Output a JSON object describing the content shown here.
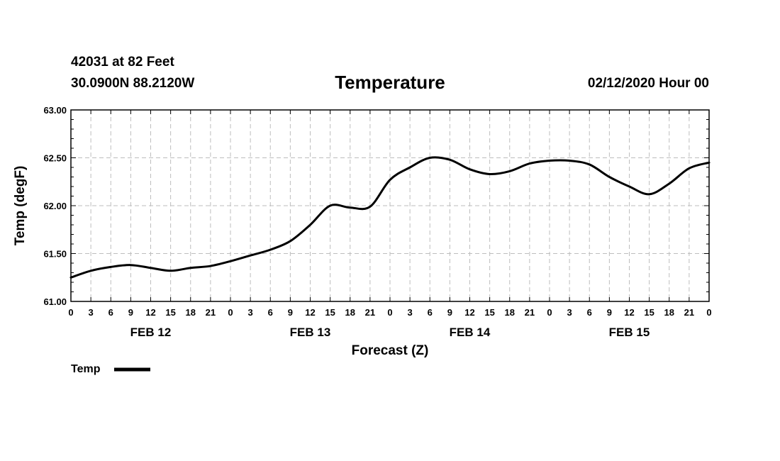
{
  "header": {
    "station": "42031 at 82 Feet",
    "coords": "30.0900N 88.2120W",
    "title": "Temperature",
    "run": "02/12/2020 Hour 00"
  },
  "chart_data": {
    "type": "line",
    "title": "Temperature",
    "xlabel": "Forecast (Z)",
    "ylabel": "Temp (degF)",
    "ylim": [
      61.0,
      63.0
    ],
    "yticks": [
      "61.00",
      "61.50",
      "62.00",
      "62.50",
      "63.00"
    ],
    "xlim": [
      0,
      96
    ],
    "xtick_labels": [
      "0",
      "3",
      "6",
      "9",
      "12",
      "15",
      "18",
      "21",
      "0",
      "3",
      "6",
      "9",
      "12",
      "15",
      "18",
      "21",
      "0",
      "3",
      "6",
      "9",
      "12",
      "15",
      "18",
      "21",
      "0",
      "3",
      "6",
      "9",
      "12",
      "15",
      "18",
      "21",
      "0"
    ],
    "day_labels": [
      {
        "label": "FEB 12",
        "hour": 12
      },
      {
        "label": "FEB 13",
        "hour": 36
      },
      {
        "label": "FEB 14",
        "hour": 60
      },
      {
        "label": "FEB 15",
        "hour": 84
      }
    ],
    "grid": true,
    "legend": "bottom-left",
    "series": [
      {
        "name": "Temp",
        "color": "#000000",
        "x": [
          0,
          3,
          6,
          9,
          12,
          15,
          18,
          21,
          24,
          27,
          30,
          33,
          36,
          39,
          42,
          45,
          48,
          51,
          54,
          57,
          60,
          63,
          66,
          69,
          72,
          75,
          78,
          81,
          84,
          87,
          90,
          93,
          96
        ],
        "y": [
          61.25,
          61.32,
          61.36,
          61.38,
          61.35,
          61.32,
          61.35,
          61.37,
          61.42,
          61.48,
          61.54,
          61.63,
          61.8,
          62.0,
          61.98,
          61.99,
          62.27,
          62.4,
          62.5,
          62.48,
          62.38,
          62.33,
          62.36,
          62.44,
          62.47,
          62.47,
          62.43,
          62.3,
          62.2,
          62.12,
          62.23,
          62.39,
          62.45
        ]
      }
    ]
  },
  "legend": {
    "label": "Temp"
  }
}
